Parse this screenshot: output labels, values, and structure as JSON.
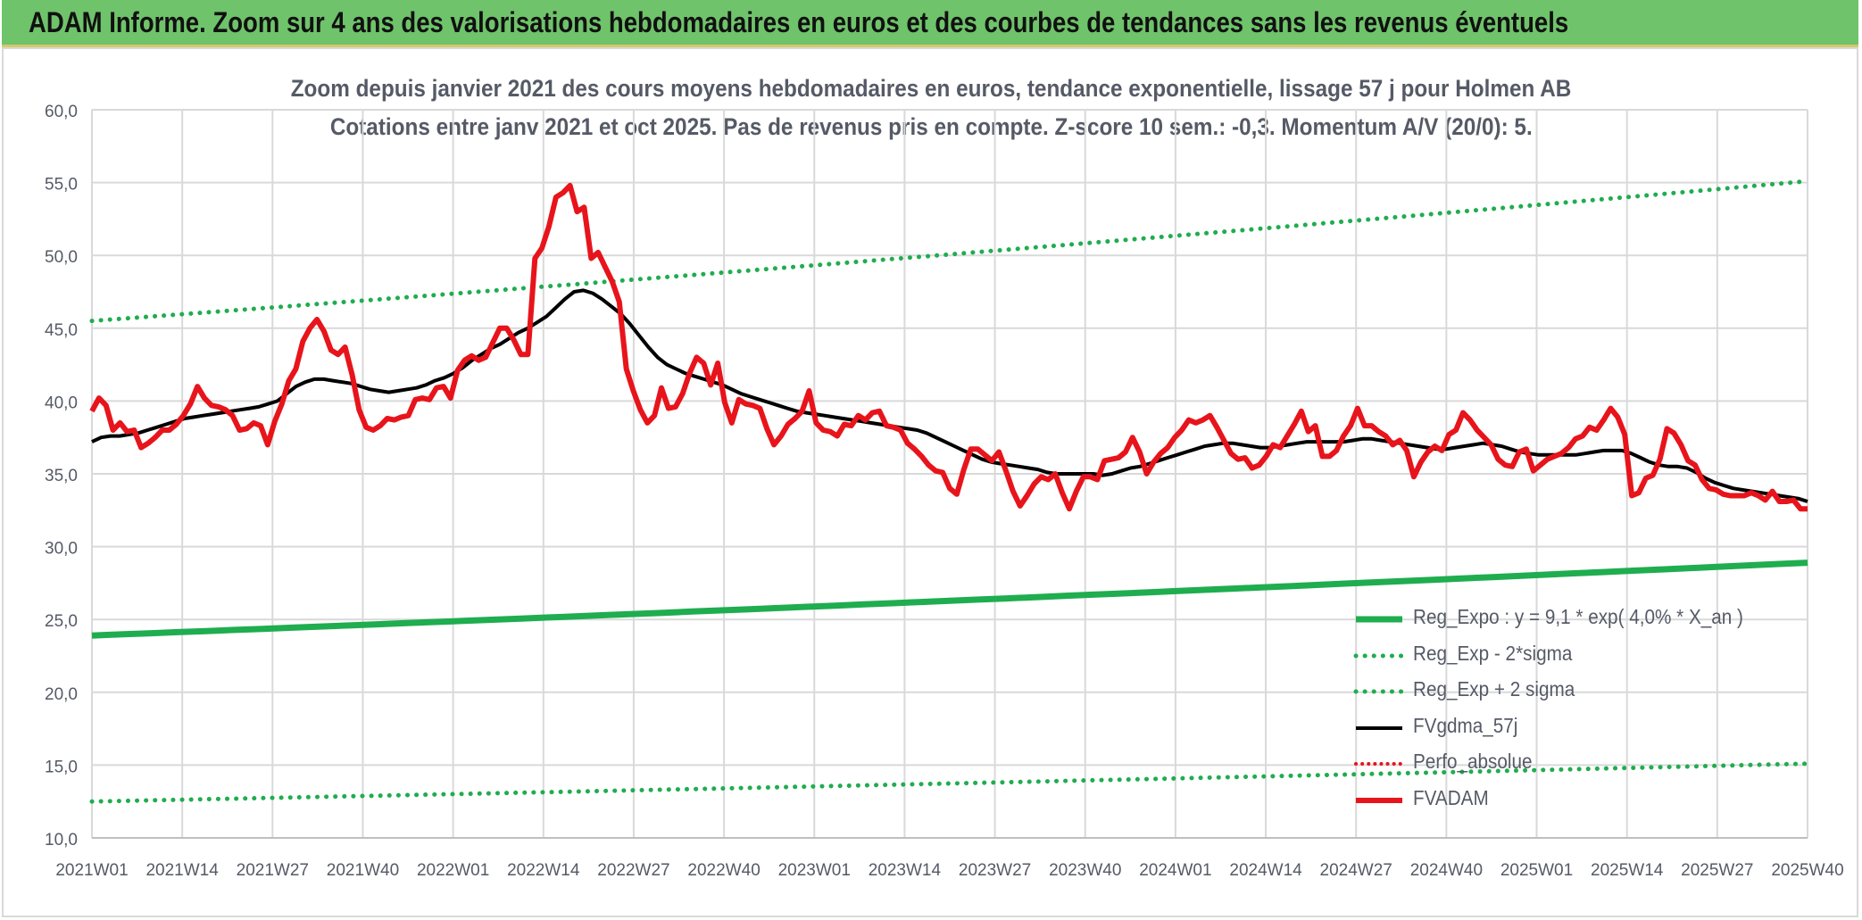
{
  "header": {
    "title": "ADAM Informe. Zoom sur 4 ans des valorisations hebdomadaires en euros et des courbes de tendances sans les revenus éventuels"
  },
  "colors": {
    "banner": "#6fc36a",
    "trend": "#1fad4f",
    "band": "#1fad4f",
    "fvgdma": "#000000",
    "fvadam": "#e8141b",
    "perfo": "#e8141b"
  },
  "chart_data": {
    "type": "line",
    "title": "Zoom depuis janvier 2021 des cours moyens hebdomadaires en euros, tendance exponentielle, lissage 57 j pour Holmen AB",
    "subtitle": "Cotations entre janv 2021 et oct 2025. Pas de revenus pris en compte. Z-score 10 sem.: -0,3. Momentum A/V (20/0): 5.",
    "ylim": [
      10,
      60
    ],
    "yticks": [
      "10,0",
      "15,0",
      "20,0",
      "25,0",
      "30,0",
      "35,0",
      "40,0",
      "45,0",
      "50,0",
      "55,0",
      "60,0"
    ],
    "xticks": [
      "2021W01",
      "2021W14",
      "2021W27",
      "2021W40",
      "2022W01",
      "2022W14",
      "2022W27",
      "2022W40",
      "2023W01",
      "2023W14",
      "2023W27",
      "2023W40",
      "2024W01",
      "2024W14",
      "2024W27",
      "2024W40",
      "2025W01",
      "2025W14",
      "2025W27",
      "2025W40"
    ],
    "legend_position": "bottom-right",
    "series": [
      {
        "name": "Reg_Expo : y = 9,1 * exp( 4,0% *  X_an )",
        "style": "solid-thick",
        "start": 23.9,
        "end": 28.9
      },
      {
        "name": "Reg_Exp - 2*sigma",
        "style": "dotted",
        "start": 12.5,
        "end": 15.1
      },
      {
        "name": "Reg_Exp + 2 sigma",
        "style": "dotted",
        "start": 45.5,
        "end": 55.1
      },
      {
        "name": "FVgdma_57j",
        "style": "solid",
        "values": [
          37.2,
          37.5,
          37.6,
          37.6,
          37.7,
          37.8,
          38.0,
          38.2,
          38.4,
          38.6,
          38.8,
          38.9,
          39.0,
          39.1,
          39.2,
          39.3,
          39.4,
          39.5,
          39.6,
          39.8,
          40.0,
          40.5,
          41.0,
          41.3,
          41.5,
          41.5,
          41.4,
          41.3,
          41.2,
          41.0,
          40.8,
          40.7,
          40.6,
          40.7,
          40.8,
          40.9,
          41.1,
          41.4,
          41.6,
          41.9,
          42.3,
          42.8,
          43.2,
          43.6,
          43.9,
          44.3,
          44.7,
          45.0,
          45.4,
          45.8,
          46.4,
          47.0,
          47.5,
          47.6,
          47.4,
          47.0,
          46.5,
          46.0,
          45.3,
          44.5,
          43.7,
          43.0,
          42.5,
          42.2,
          41.9,
          41.7,
          41.5,
          41.3,
          41.1,
          40.8,
          40.5,
          40.3,
          40.1,
          39.9,
          39.7,
          39.5,
          39.3,
          39.2,
          39.1,
          39.0,
          38.9,
          38.8,
          38.7,
          38.6,
          38.5,
          38.4,
          38.3,
          38.2,
          38.1,
          38.0,
          37.8,
          37.5,
          37.2,
          36.9,
          36.6,
          36.3,
          36.0,
          35.8,
          35.7,
          35.6,
          35.5,
          35.4,
          35.3,
          35.1,
          35.0,
          35.0,
          35.0,
          35.0,
          35.0,
          34.9,
          35.0,
          35.2,
          35.4,
          35.5,
          35.7,
          35.9,
          36.1,
          36.3,
          36.5,
          36.7,
          36.9,
          37.0,
          37.1,
          37.1,
          37.0,
          36.9,
          36.8,
          36.8,
          36.9,
          37.0,
          37.1,
          37.2,
          37.2,
          37.2,
          37.2,
          37.2,
          37.3,
          37.4,
          37.4,
          37.3,
          37.2,
          37.1,
          37.0,
          36.9,
          36.8,
          36.7,
          36.7,
          36.8,
          36.9,
          37.0,
          37.1,
          37.0,
          36.9,
          36.7,
          36.5,
          36.4,
          36.3,
          36.3,
          36.3,
          36.3,
          36.3,
          36.4,
          36.5,
          36.6,
          36.6,
          36.6,
          36.4,
          36.1,
          35.8,
          35.6,
          35.5,
          35.5,
          35.4,
          35.1,
          34.7,
          34.4,
          34.2,
          34.0,
          33.9,
          33.8,
          33.7,
          33.6,
          33.5,
          33.4,
          33.3,
          33.1
        ]
      },
      {
        "name": "Perfo_absolue",
        "style": "dotted",
        "values": []
      },
      {
        "name": "FVADAM",
        "style": "solid-thick",
        "values": [
          39.3,
          40.2,
          39.7,
          38.0,
          38.5,
          37.9,
          38.0,
          36.8,
          37.1,
          37.5,
          38.0,
          38.0,
          38.4,
          39.0,
          39.8,
          41.0,
          40.2,
          39.7,
          39.6,
          39.4,
          39.0,
          38.0,
          38.1,
          38.5,
          38.3,
          37.0,
          38.6,
          39.8,
          41.4,
          42.2,
          44.1,
          45.0,
          45.6,
          44.8,
          43.5,
          43.2,
          43.7,
          41.8,
          39.4,
          38.2,
          38.0,
          38.3,
          38.8,
          38.7,
          38.9,
          39.0,
          40.1,
          40.2,
          40.1,
          40.9,
          41.0,
          40.2,
          42.1,
          42.8,
          43.1,
          42.8,
          43.0,
          44.0,
          45.0,
          45.0,
          44.2,
          43.2,
          43.2,
          49.8,
          50.5,
          52.0,
          54.0,
          54.3,
          54.8,
          53.0,
          53.3,
          49.8,
          50.2,
          49.2,
          48.2,
          46.8,
          42.2,
          40.7,
          39.4,
          38.5,
          39.0,
          40.9,
          39.5,
          39.6,
          40.5,
          41.9,
          43.0,
          42.6,
          41.1,
          42.6,
          39.9,
          38.5,
          40.1,
          39.8,
          39.7,
          39.5,
          38.1,
          37.0,
          37.6,
          38.4,
          38.8,
          39.3,
          40.7,
          38.5,
          38.0,
          37.9,
          37.6,
          38.4,
          38.3,
          39.0,
          38.7,
          39.2,
          39.3,
          38.3,
          38.2,
          38.0,
          37.1,
          36.7,
          36.2,
          35.6,
          35.2,
          35.1,
          34.0,
          33.6,
          35.3,
          36.7,
          36.7,
          36.3,
          35.9,
          36.5,
          35.2,
          33.8,
          32.8,
          33.5,
          34.3,
          34.8,
          34.6,
          35.0,
          33.7,
          32.6,
          33.8,
          34.8,
          34.8,
          34.6,
          35.9,
          36.0,
          36.1,
          36.5,
          37.5,
          36.5,
          35.0,
          35.8,
          36.4,
          36.8,
          37.5,
          38.0,
          38.7,
          38.5,
          38.7,
          39.0,
          38.2,
          37.3,
          36.4,
          36.0,
          36.1,
          35.4,
          35.6,
          36.2,
          37.0,
          36.8,
          37.6,
          38.4,
          39.3,
          37.9,
          38.3,
          36.2,
          36.2,
          36.6,
          37.6,
          38.3,
          39.5,
          38.3,
          38.3,
          37.9,
          37.6,
          37.0,
          37.3,
          36.6,
          34.8,
          35.8,
          36.5,
          36.9,
          36.6,
          37.7,
          38.0,
          39.2,
          38.7,
          38.0,
          37.5,
          37.0,
          36.0,
          35.6,
          35.5,
          36.5,
          36.7,
          35.2,
          35.6,
          36.0,
          36.2,
          36.4,
          36.8,
          37.4,
          37.6,
          38.2,
          38.0,
          38.7,
          39.5,
          38.9,
          37.7,
          33.5,
          33.7,
          34.7,
          34.9,
          36.0,
          38.1,
          37.8,
          37.0,
          35.9,
          35.6,
          34.6,
          34.0,
          33.9,
          33.6,
          33.5,
          33.5,
          33.5,
          33.7,
          33.5,
          33.2,
          33.8,
          33.1,
          33.1,
          33.2,
          32.6,
          32.6
        ]
      }
    ]
  }
}
